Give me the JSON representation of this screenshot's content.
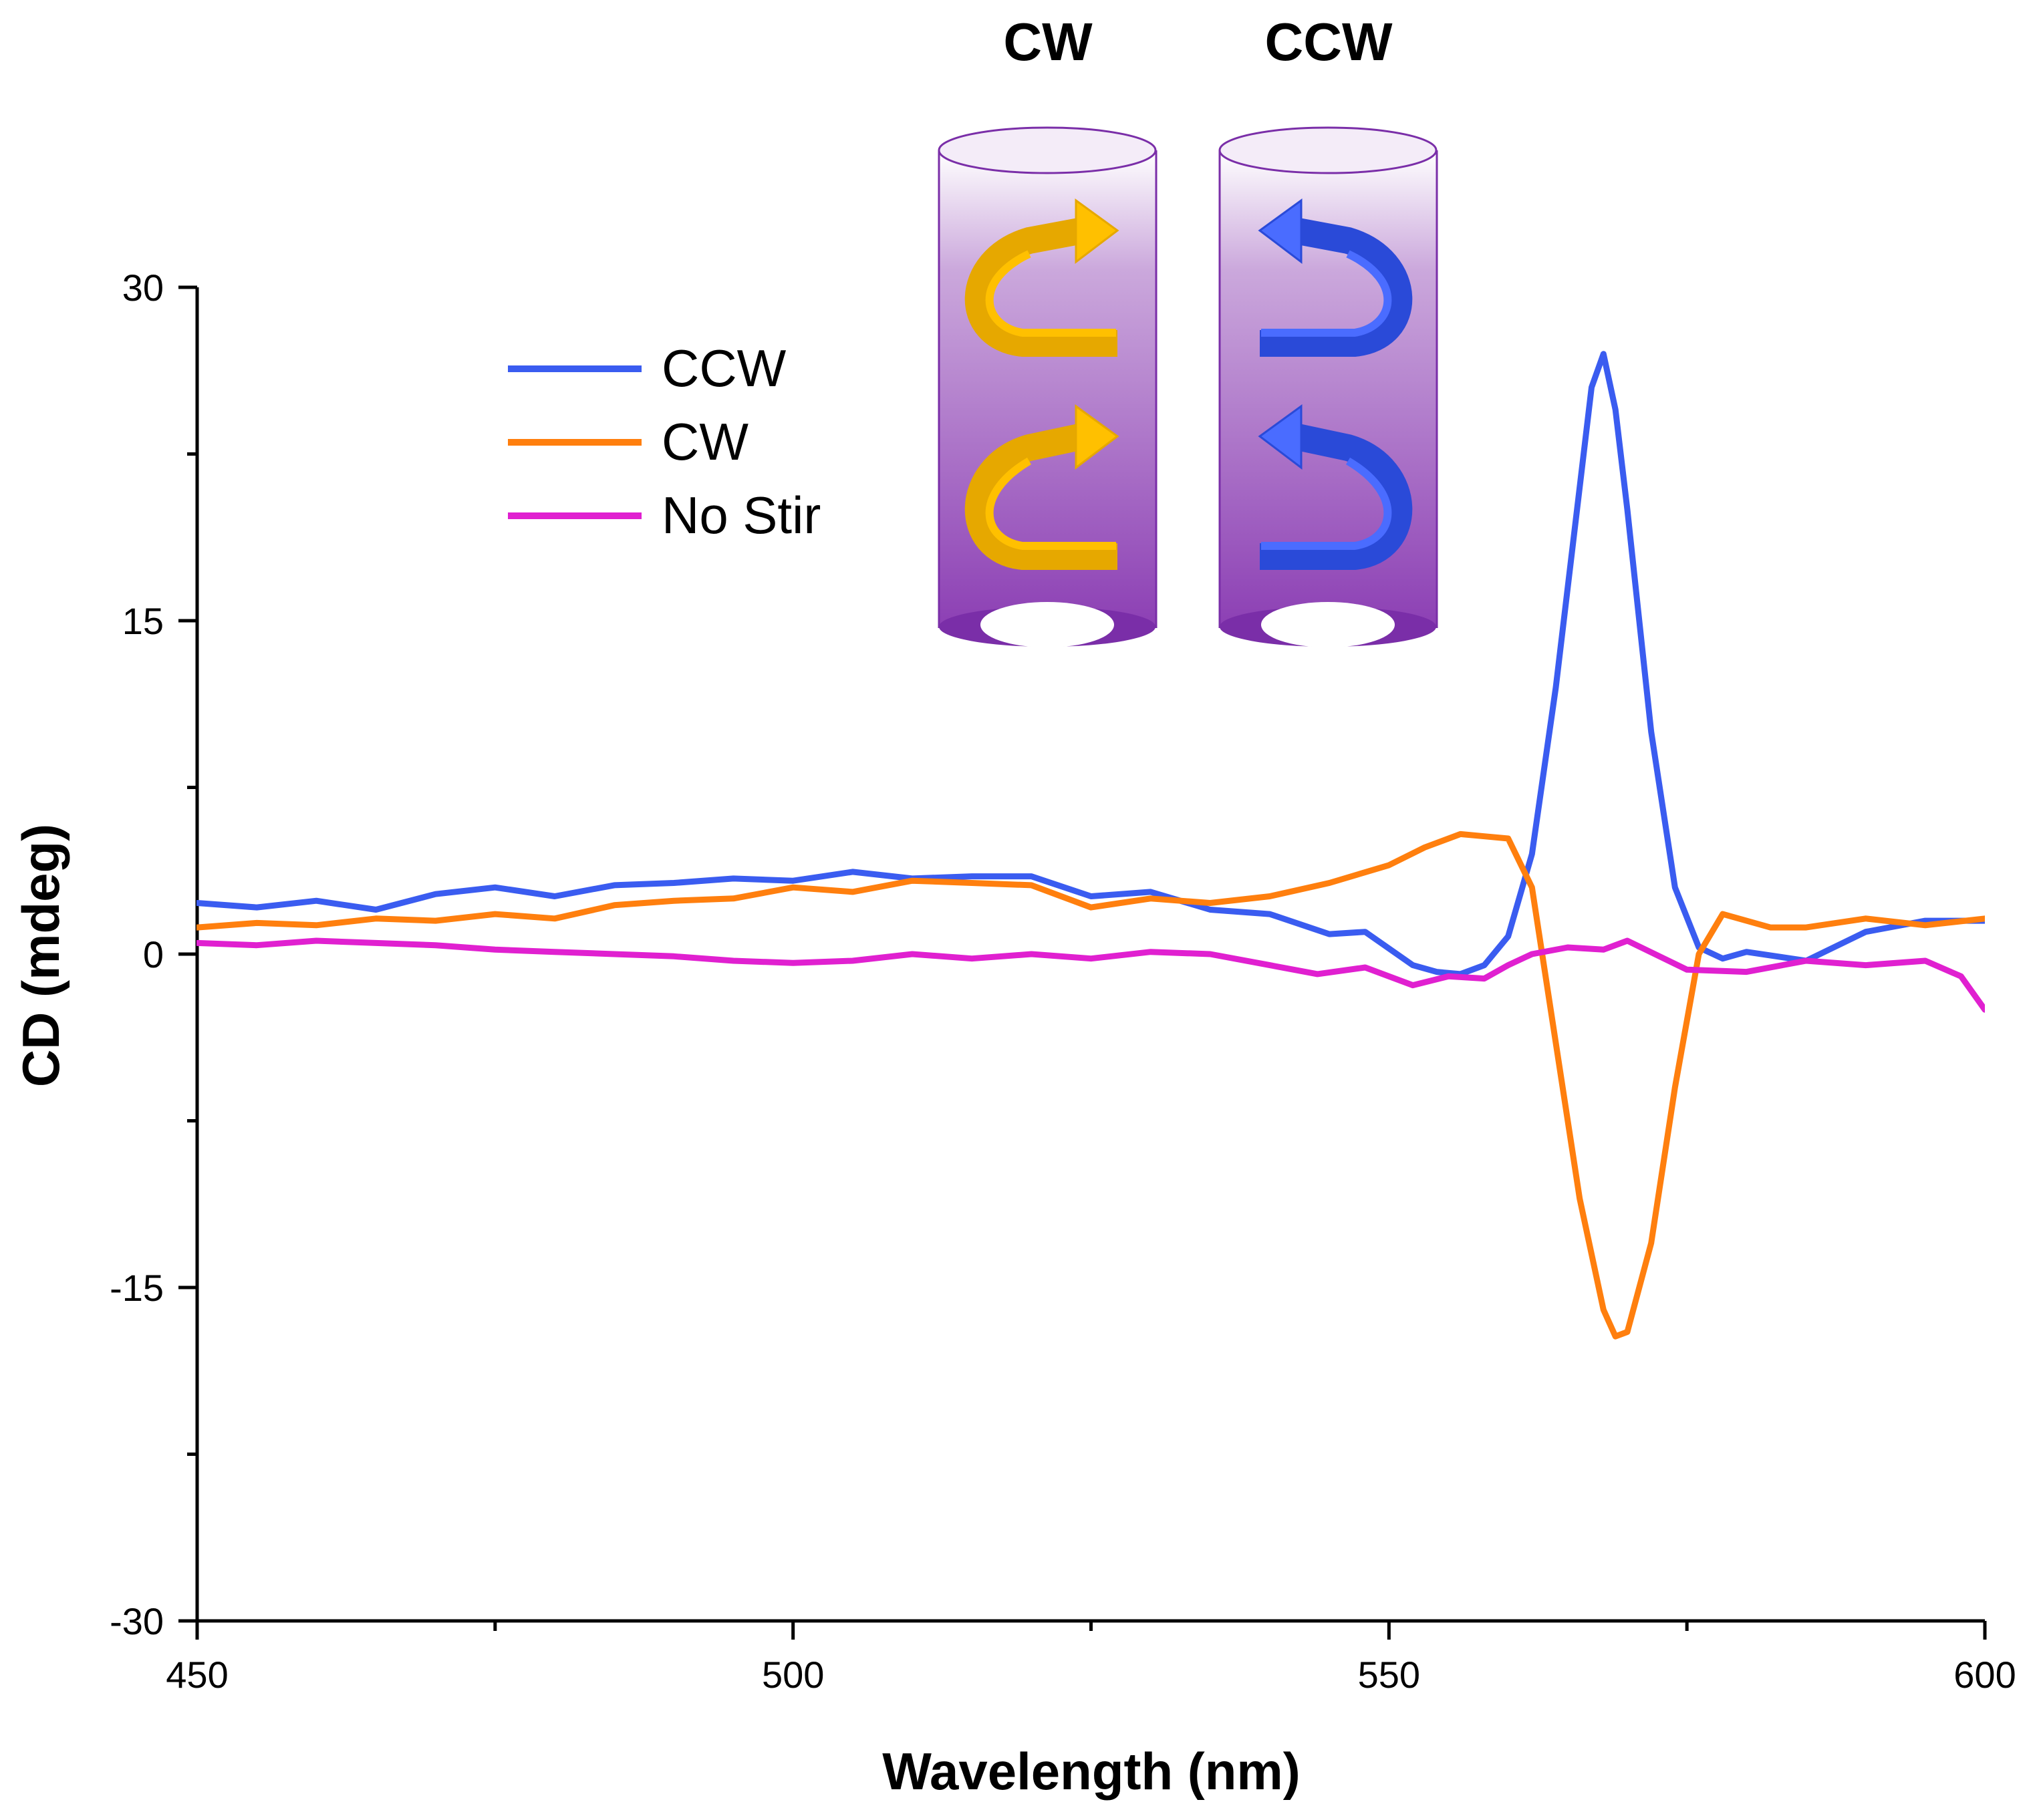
{
  "chart_data": {
    "type": "line",
    "title": "",
    "xlabel": "Wavelength (nm)",
    "ylabel": "CD (mdeg)",
    "xlim": [
      450,
      600
    ],
    "ylim": [
      -30,
      30
    ],
    "x_ticks": [
      450,
      500,
      550,
      600
    ],
    "x_tick_labels": [
      "450",
      "500",
      "550",
      "600"
    ],
    "y_ticks": [
      -30,
      -15,
      0,
      15,
      30
    ],
    "y_tick_labels": [
      "-30",
      "-15",
      "0",
      "15",
      "30"
    ],
    "legend_position": "upper-left",
    "series": [
      {
        "name": "CCW",
        "color": "#3a5cf0",
        "x": [
          450,
          455,
          460,
          465,
          470,
          475,
          480,
          485,
          490,
          495,
          500,
          505,
          510,
          515,
          520,
          525,
          530,
          535,
          540,
          545,
          548,
          552,
          554,
          556,
          558,
          560,
          562,
          564,
          566,
          567,
          568,
          569,
          570,
          572,
          574,
          576,
          578,
          580,
          585,
          590,
          595,
          600
        ],
        "y": [
          2.3,
          2.1,
          2.4,
          2.0,
          2.7,
          3.0,
          2.6,
          3.1,
          3.2,
          3.4,
          3.3,
          3.7,
          3.4,
          3.5,
          3.5,
          2.6,
          2.8,
          2.0,
          1.8,
          0.9,
          1.0,
          -0.5,
          -0.8,
          -0.9,
          -0.5,
          0.8,
          4.5,
          12.0,
          21.0,
          25.5,
          27.0,
          24.5,
          20.0,
          10.0,
          3.0,
          0.3,
          -0.2,
          0.1,
          -0.3,
          1.0,
          1.5,
          1.5
        ]
      },
      {
        "name": "CW",
        "color": "#ff7f0e",
        "x": [
          450,
          455,
          460,
          465,
          470,
          475,
          480,
          485,
          490,
          495,
          500,
          505,
          510,
          515,
          520,
          525,
          530,
          535,
          540,
          545,
          550,
          553,
          556,
          558,
          560,
          562,
          564,
          566,
          568,
          569,
          570,
          572,
          574,
          576,
          578,
          580,
          582,
          585,
          590,
          595,
          600
        ],
        "y": [
          1.2,
          1.4,
          1.3,
          1.6,
          1.5,
          1.8,
          1.6,
          2.2,
          2.4,
          2.5,
          3.0,
          2.8,
          3.3,
          3.2,
          3.1,
          2.1,
          2.5,
          2.3,
          2.6,
          3.2,
          4.0,
          4.8,
          5.4,
          5.3,
          5.2,
          3.0,
          -4.0,
          -11.0,
          -16.0,
          -17.2,
          -17.0,
          -13.0,
          -6.0,
          0.0,
          1.8,
          1.5,
          1.2,
          1.2,
          1.6,
          1.3,
          1.6
        ]
      },
      {
        "name": "No Stir",
        "color": "#e020d0",
        "x": [
          450,
          455,
          460,
          465,
          470,
          475,
          480,
          485,
          490,
          495,
          500,
          505,
          510,
          515,
          520,
          525,
          530,
          535,
          540,
          544,
          548,
          552,
          555,
          558,
          560,
          562,
          565,
          568,
          570,
          575,
          580,
          585,
          590,
          595,
          598,
          600
        ],
        "y": [
          0.5,
          0.4,
          0.6,
          0.5,
          0.4,
          0.2,
          0.1,
          0.0,
          -0.1,
          -0.3,
          -0.4,
          -0.3,
          0.0,
          -0.2,
          0.0,
          -0.2,
          0.1,
          0.0,
          -0.5,
          -0.9,
          -0.6,
          -1.4,
          -1.0,
          -1.1,
          -0.5,
          0.0,
          0.3,
          0.2,
          0.6,
          -0.7,
          -0.8,
          -0.3,
          -0.5,
          -0.3,
          -1.0,
          -2.5
        ]
      }
    ],
    "inset": {
      "labels": [
        "CW",
        "CCW"
      ],
      "arrow_colors": [
        "#ffc000",
        "#3a5cf0"
      ],
      "tube_color": "#7a2ea8"
    }
  }
}
